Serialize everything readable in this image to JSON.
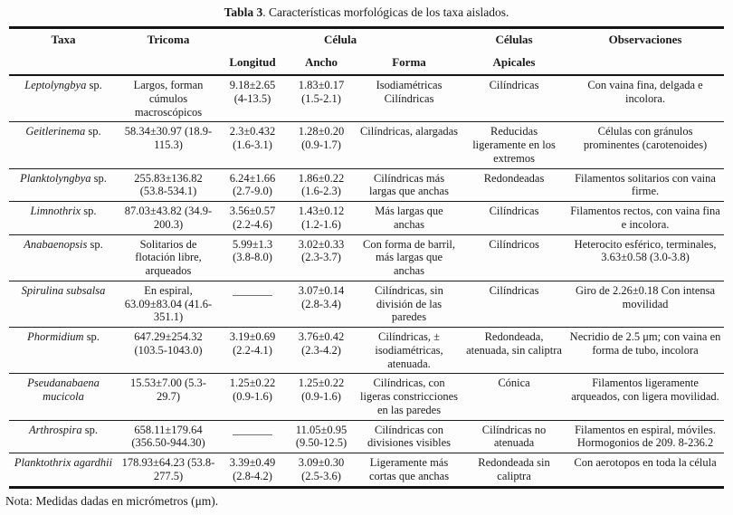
{
  "title": {
    "bold": "Tabla 3",
    "rest": ". Características morfológicas de los taxa aislados."
  },
  "header": {
    "taxa": "Taxa",
    "tricoma": "Tricoma",
    "celula_group": "Célula",
    "longitud": "Longitud",
    "ancho": "Ancho",
    "forma": "Forma",
    "celulas_apicales_line1": "Células",
    "celulas_apicales_line2": "Apicales",
    "observaciones": "Observaciones"
  },
  "rows": [
    {
      "taxa_italic": "Leptolyngbya",
      "taxa_rest": " sp.",
      "tricoma": "Largos, forman cúmulos macroscópicos",
      "longitud": "9.18±2.65 (4-13.5)",
      "ancho": "1.83±0.17 (1.5-2.1)",
      "forma": "Isodiamétricas Cilíndricas",
      "apicales": "Cilíndricas",
      "observaciones": "Con vaina fina, delgada e incolora."
    },
    {
      "taxa_italic": "Geitlerinema",
      "taxa_rest": " sp.",
      "tricoma": "58.34±30.97 (18.9-115.3)",
      "longitud": "2.3±0.432 (1.6-3.1)",
      "ancho": "1.28±0.20 (0.9-1.7)",
      "forma": "Cilíndricas, alargadas",
      "apicales": "Reducidas ligeramente en los extremos",
      "observaciones": "Células con gránulos prominentes (carotenoides)"
    },
    {
      "taxa_italic": "Planktolyngbya",
      "taxa_rest": " sp.",
      "tricoma": "255.83±136.82 (53.8-534.1)",
      "longitud": "6.24±1.66 (2.7-9.0)",
      "ancho": "1.86±0.22 (1.6-2.3)",
      "forma": "Cilíndricas más largas que anchas",
      "apicales": "Redondeadas",
      "observaciones": "Filamentos solitarios con vaina firme."
    },
    {
      "taxa_italic": "Limnothrix",
      "taxa_rest": " sp.",
      "tricoma": "87.03±43.82 (34.9-200.3)",
      "longitud": "3.56±0.57 (2.2-4.6)",
      "ancho": "1.43±0.12 (1.2-1.6)",
      "forma": "Más largas que anchas",
      "apicales": "Cilíndricas",
      "observaciones": "Filamentos rectos, con vaina fina e incolora."
    },
    {
      "taxa_italic": "Anabaenopsis",
      "taxa_rest": " sp.",
      "tricoma": "Solitarios de flotación libre, arqueados",
      "longitud": "5.99±1.3 (3.8-8.0)",
      "ancho": "3.02±0.33 (2.3-3.7)",
      "forma": "Con forma de barril, más largas que anchas",
      "apicales": "Cilíndricos",
      "observaciones": "Heterocito esférico, terminales, 3.63±0.58 (3.0-3.8)"
    },
    {
      "taxa_italic": "Spirulina subsalsa",
      "taxa_rest": "",
      "tricoma": "En espiral, 63.09±83.04 (41.6-351.1)",
      "longitud": "_______",
      "ancho": "3.07±0.14 (2.8-3.4)",
      "forma": "Cilíndricas, sin división de las paredes",
      "apicales": "Cilíndricas",
      "observaciones": "Giro de 2.26±0.18 Con intensa movilidad"
    },
    {
      "taxa_italic": "Phormidium",
      "taxa_rest": " sp.",
      "tricoma": "647.29±254.32 (103.5-1043.0)",
      "longitud": "3.19±0.69 (2.2-4.1)",
      "ancho": "3.76±0.42 (2.3-4.2)",
      "forma": "Cilíndricas, ± isodiamétricas, atenuada.",
      "apicales": "Redondeada, atenuada, sin caliptra",
      "observaciones": "Necridio de 2.5 μm; con vaina en forma de tubo, incolora"
    },
    {
      "taxa_italic": "Pseudanabaena mucicola",
      "taxa_rest": "",
      "tricoma": "15.53±7.00 (5.3-29.7)",
      "longitud": "1.25±0.22 (0.9-1.6)",
      "ancho": "1.25±0.22 (0.9-1.6)",
      "forma": "Cilíndricas, con ligeras constricciones en las paredes",
      "apicales": "Cónica",
      "observaciones": "Filamentos ligeramente arqueados, con ligera movilidad."
    },
    {
      "taxa_italic": "Arthrospira",
      "taxa_rest": " sp.",
      "tricoma": "658.11±179.64 (356.50-944.30)",
      "longitud": "_______",
      "ancho": "11.05±0.95 (9.50-12.5)",
      "forma": "Cilíndricas con divisiones visibles",
      "apicales": "Cilíndricas no atenuada",
      "observaciones": "Filamentos en espiral, móviles. Hormogonios de 209. 8-236.2"
    },
    {
      "taxa_italic": "Planktothrix agardhii",
      "taxa_rest": "",
      "tricoma": "178.93±64.23 (53.8-277.5)",
      "longitud": "3.39±0.49 (2.8-4.2)",
      "ancho": "3.09±0.30 (2.5-3.6)",
      "forma": "Ligeramente más cortas que anchas",
      "apicales": "Redondeada sin caliptra",
      "observaciones": "Con aerotopos en toda la célula"
    }
  ],
  "note": "Nota: Medidas dadas en micrómetros (μm)."
}
